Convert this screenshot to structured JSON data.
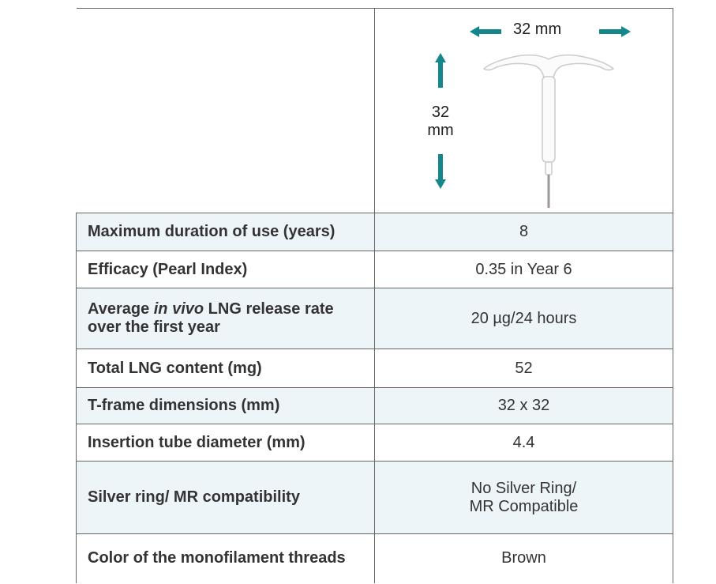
{
  "image": {
    "width_label": "32 mm",
    "height_label": [
      "32",
      "mm"
    ]
  },
  "table": {
    "rows": [
      {
        "label": [
          "Maximum duration of use (years)"
        ],
        "value": [
          "8"
        ]
      },
      {
        "label": [
          "Efficacy (Pearl Index)"
        ],
        "value": [
          "0.35 in Year 6"
        ]
      },
      {
        "label": [
          "Average ",
          "in vivo",
          " LNG release rate",
          "over the first year"
        ],
        "value": [
          "20 µg/24 hours"
        ]
      },
      {
        "label": [
          "Total LNG content (mg)"
        ],
        "value": [
          "52"
        ]
      },
      {
        "label": [
          "T-frame dimensions (mm)"
        ],
        "value": [
          "32 x 32"
        ]
      },
      {
        "label": [
          "Insertion tube diameter (mm)"
        ],
        "value": [
          "4.4"
        ]
      },
      {
        "label": [
          "Silver ring/ MR compatibility"
        ],
        "value": [
          "No Silver Ring/",
          "MR Compatible"
        ]
      },
      {
        "label": [
          "Color of the monofilament threads"
        ],
        "value": [
          "Brown"
        ]
      }
    ]
  }
}
